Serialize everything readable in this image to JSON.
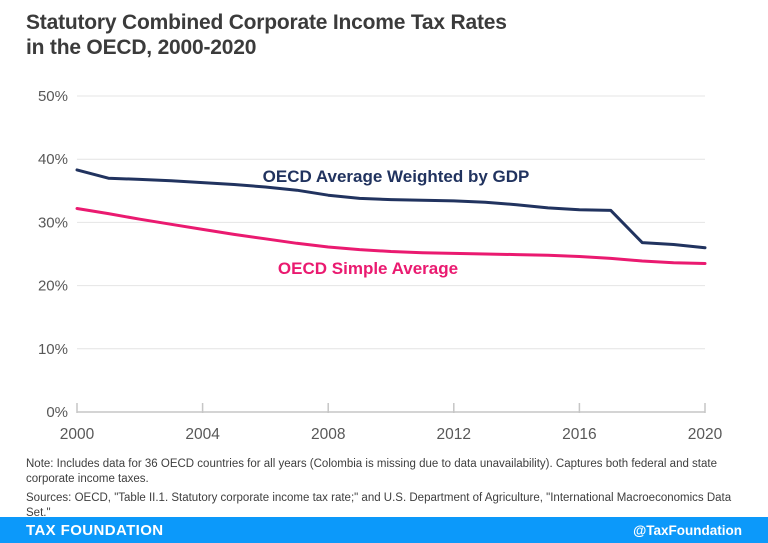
{
  "title": {
    "line1": "Statutory Combined Corporate Income Tax Rates",
    "line2": "in the OECD, 2000-2020"
  },
  "chart_data": {
    "type": "line",
    "title": "Statutory Combined Corporate Income Tax Rates in the OECD, 2000-2020",
    "x": [
      2000,
      2001,
      2002,
      2003,
      2004,
      2005,
      2006,
      2007,
      2008,
      2009,
      2010,
      2011,
      2012,
      2013,
      2014,
      2015,
      2016,
      2017,
      2018,
      2019,
      2020
    ],
    "series": [
      {
        "name": "OECD Average Weighted by GDP",
        "color": "#21335f",
        "values": [
          38.3,
          37.0,
          36.8,
          36.6,
          36.3,
          36.0,
          35.6,
          35.1,
          34.3,
          33.8,
          33.6,
          33.5,
          33.4,
          33.2,
          32.8,
          32.3,
          32.0,
          31.9,
          26.8,
          26.5,
          26.0
        ]
      },
      {
        "name": "OECD Simple Average",
        "color": "#ea1a70",
        "values": [
          32.2,
          31.4,
          30.5,
          29.7,
          28.9,
          28.1,
          27.4,
          26.7,
          26.1,
          25.7,
          25.4,
          25.2,
          25.1,
          25.0,
          24.9,
          24.8,
          24.6,
          24.3,
          23.9,
          23.6,
          23.5
        ]
      }
    ],
    "xlim": [
      2000,
      2020
    ],
    "ylim": [
      0,
      50
    ],
    "xticks": [
      2000,
      2004,
      2008,
      2012,
      2016,
      2020
    ],
    "ytick_labels": [
      "0%",
      "10%",
      "20%",
      "30%",
      "40%",
      "50%"
    ],
    "grid": "horizontal",
    "legend_position": "inline-annotations",
    "xlabel": "",
    "ylabel": ""
  },
  "note": "Note: Includes data for 36 OECD countries for all years (Colombia is missing due to data unavailability). Captures both federal and state corporate income taxes.",
  "sources": "Sources: OECD, \"Table II.1. Statutory corporate income tax rate;\" and U.S. Department of Agriculture, \"International Macroeconomics Data Set.\"",
  "footer": {
    "brand": "TAX FOUNDATION",
    "handle": "@TaxFoundation"
  },
  "colors": {
    "accent_blue": "#0c99fa",
    "navy": "#21335f",
    "pink": "#ea1a70",
    "grid": "#e4e4e4",
    "axis": "#c6c6c6",
    "tick_label": "#585858",
    "title_text": "#3b3b3b",
    "note_text": "#3e3e3e"
  }
}
